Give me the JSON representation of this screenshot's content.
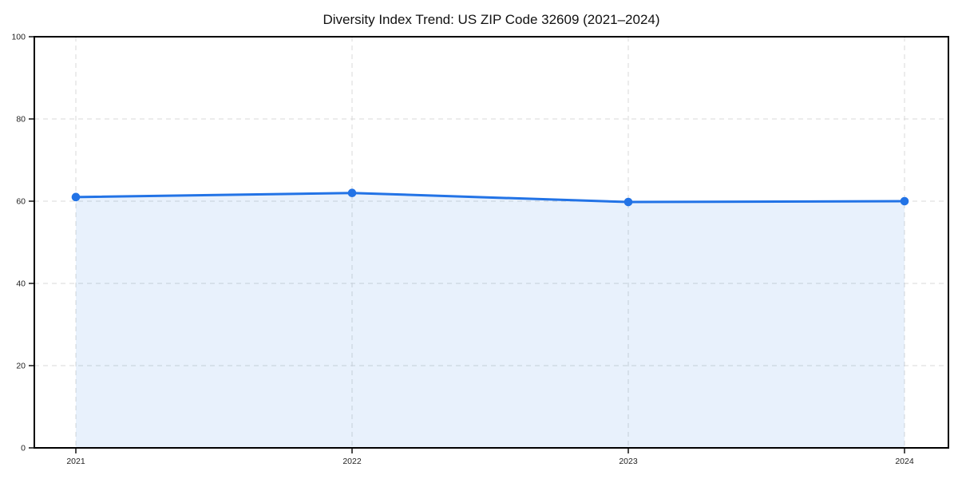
{
  "chart_data": {
    "type": "area",
    "title": "Diversity Index Trend: US ZIP Code 32609 (2021–2024)",
    "categories": [
      "2021",
      "2022",
      "2023",
      "2024"
    ],
    "series": [
      {
        "name": "Diversity Index",
        "values": [
          61,
          62,
          59.8,
          60
        ]
      }
    ],
    "xlabel": "",
    "ylabel": "",
    "ylim": [
      0,
      100
    ],
    "yticks": [
      0,
      20,
      40,
      60,
      80,
      100
    ],
    "grid": true,
    "grid_style": "dashed",
    "legend": "none",
    "marker": "circle",
    "colors": {
      "line": "#2273e6",
      "marker": "#2273e6",
      "fill": "rgba(34,115,230,0.10)",
      "grid": "#d9d9d9",
      "axis": "#000000",
      "tick_text": "#222222",
      "title_text": "#111111",
      "background": "#ffffff"
    }
  }
}
